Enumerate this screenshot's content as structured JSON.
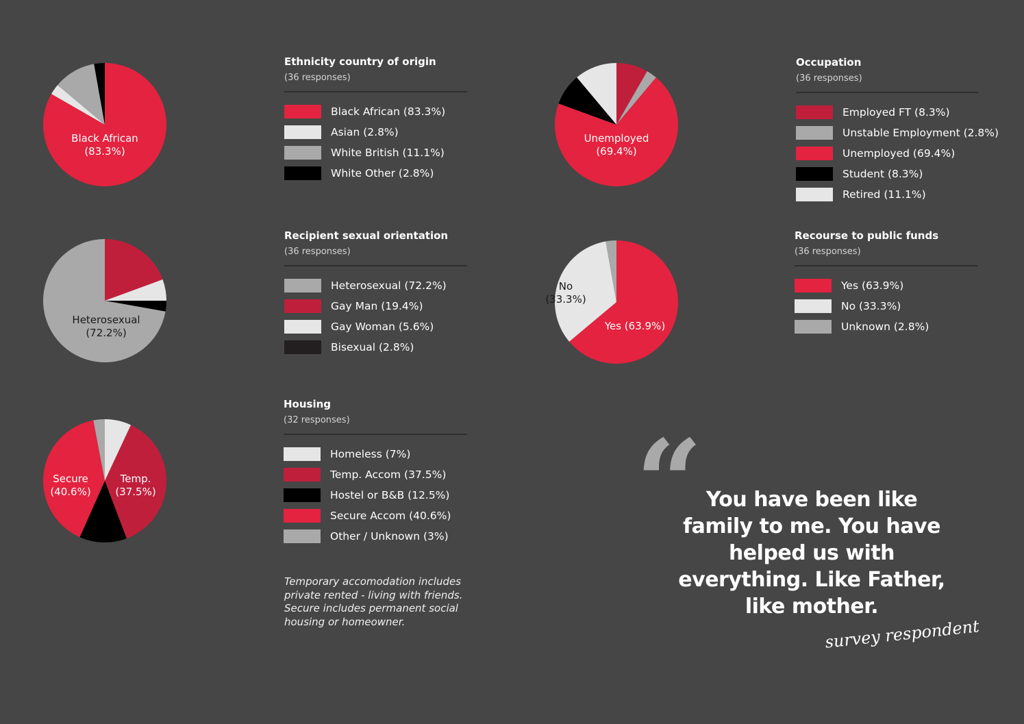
{
  "colors": {
    "background": "#464646",
    "red": "#e3233f",
    "dark_red": "#c01f3c",
    "light_grey": "#e6e6e6",
    "mid_grey": "#a9a9a9",
    "black": "#000000",
    "near_black": "#231f20"
  },
  "chart_data": [
    {
      "type": "pie",
      "title": "Ethnicity country of origin",
      "subtitle": "(36 responses)",
      "slices": [
        {
          "label": "Black African",
          "value": 83.3,
          "legend": "Black African (83.3%)",
          "color": "#e3233f",
          "pie_label": "Black African",
          "pie_value": "(83.3%)"
        },
        {
          "label": "Asian",
          "value": 2.8,
          "legend": "Asian (2.8%)",
          "color": "#e6e6e6"
        },
        {
          "label": "White British",
          "value": 11.1,
          "legend": "White British (11.1%)",
          "color": "#a9a9a9"
        },
        {
          "label": "White Other",
          "value": 2.8,
          "legend": "White Other (2.8%)",
          "color": "#000000"
        }
      ]
    },
    {
      "type": "pie",
      "title": "Recipient sexual orientation",
      "subtitle": "(36 responses)",
      "slices": [
        {
          "label": "Gay Man",
          "value": 19.4,
          "legend": "Gay Man (19.4%)",
          "color": "#c01f3c"
        },
        {
          "label": "Gay Woman",
          "value": 5.6,
          "legend": "Gay Woman (5.6%)",
          "color": "#e6e6e6"
        },
        {
          "label": "Bisexual",
          "value": 2.8,
          "legend": "Bisexual (2.8%)",
          "color": "#000000"
        },
        {
          "label": "Heterosexual",
          "value": 72.2,
          "legend": "Heterosexual (72.2%)",
          "color": "#a9a9a9",
          "pie_label": "Heterosexual",
          "pie_value": "(72.2%)",
          "label_color": "#1a1a1a"
        }
      ],
      "legend_order": [
        {
          "text": "Heterosexual (72.2%)",
          "color": "#a9a9a9"
        },
        {
          "text": "Gay Man (19.4%)",
          "color": "#c01f3c"
        },
        {
          "text": "Gay Woman (5.6%)",
          "color": "#e6e6e6"
        },
        {
          "text": "Bisexual (2.8%)",
          "color": "#231f20"
        }
      ]
    },
    {
      "type": "pie",
      "title": "Housing",
      "subtitle": "(32 responses)",
      "slices": [
        {
          "label": "Homeless",
          "value": 7,
          "legend": "Homeless (7%)",
          "color": "#e6e6e6"
        },
        {
          "label": "Temp. Accom",
          "value": 37.5,
          "legend": "Temp. Accom (37.5%)",
          "color": "#c01f3c",
          "pie_label": "Temp.",
          "pie_value": "(37.5%)"
        },
        {
          "label": "Hostel or B&B",
          "value": 12.5,
          "legend": "Hostel or B&B (12.5%)",
          "color": "#000000"
        },
        {
          "label": "Secure Accom",
          "value": 40.6,
          "legend": "Secure Accom (40.6%)",
          "color": "#e3233f",
          "pie_label": "Secure",
          "pie_value": "(40.6%)"
        },
        {
          "label": "Other / Unknown",
          "value": 3,
          "legend": "Other / Unknown (3%)",
          "color": "#a9a9a9"
        }
      ]
    },
    {
      "type": "pie",
      "title": "Occupation",
      "subtitle": "(36 responses)",
      "slices": [
        {
          "label": "Employed FT",
          "value": 8.3,
          "legend": "Employed FT (8.3%)",
          "color": "#c01f3c"
        },
        {
          "label": "Unstable Employment",
          "value": 2.8,
          "legend": "Unstable Employment (2.8%)",
          "color": "#a9a9a9"
        },
        {
          "label": "Unemployed",
          "value": 69.4,
          "legend": "Unemployed (69.4%)",
          "color": "#e3233f",
          "pie_label": "Unemployed",
          "pie_value": "(69.4%)"
        },
        {
          "label": "Student",
          "value": 8.3,
          "legend": "Student (8.3%)",
          "color": "#000000"
        },
        {
          "label": "Retired",
          "value": 11.1,
          "legend": "Retired (11.1%)",
          "color": "#e6e6e6"
        }
      ]
    },
    {
      "type": "pie",
      "title": "Recourse to public funds",
      "subtitle": "(36 responses)",
      "slices": [
        {
          "label": "Yes",
          "value": 63.9,
          "legend": "Yes (63.9%)",
          "color": "#e3233f",
          "pie_label": "Yes (63.9%)"
        },
        {
          "label": "No",
          "value": 33.3,
          "legend": "No (33.3%)",
          "color": "#e6e6e6",
          "pie_label": "No",
          "pie_value": "(33.3%)",
          "label_color": "#1a1a1a"
        },
        {
          "label": "Unknown",
          "value": 2.8,
          "legend": "Unknown (2.8%)",
          "color": "#a9a9a9"
        }
      ]
    }
  ],
  "note": "Temporary accomodation includes private rented - living with friends. Secure includes permanent social housing or homeowner.",
  "quote": {
    "mark": "“",
    "lines": [
      "You have been like",
      "family to me. You have",
      "helped us with",
      "everything. Like Father,",
      "like mother."
    ],
    "source": "survey respondent"
  }
}
